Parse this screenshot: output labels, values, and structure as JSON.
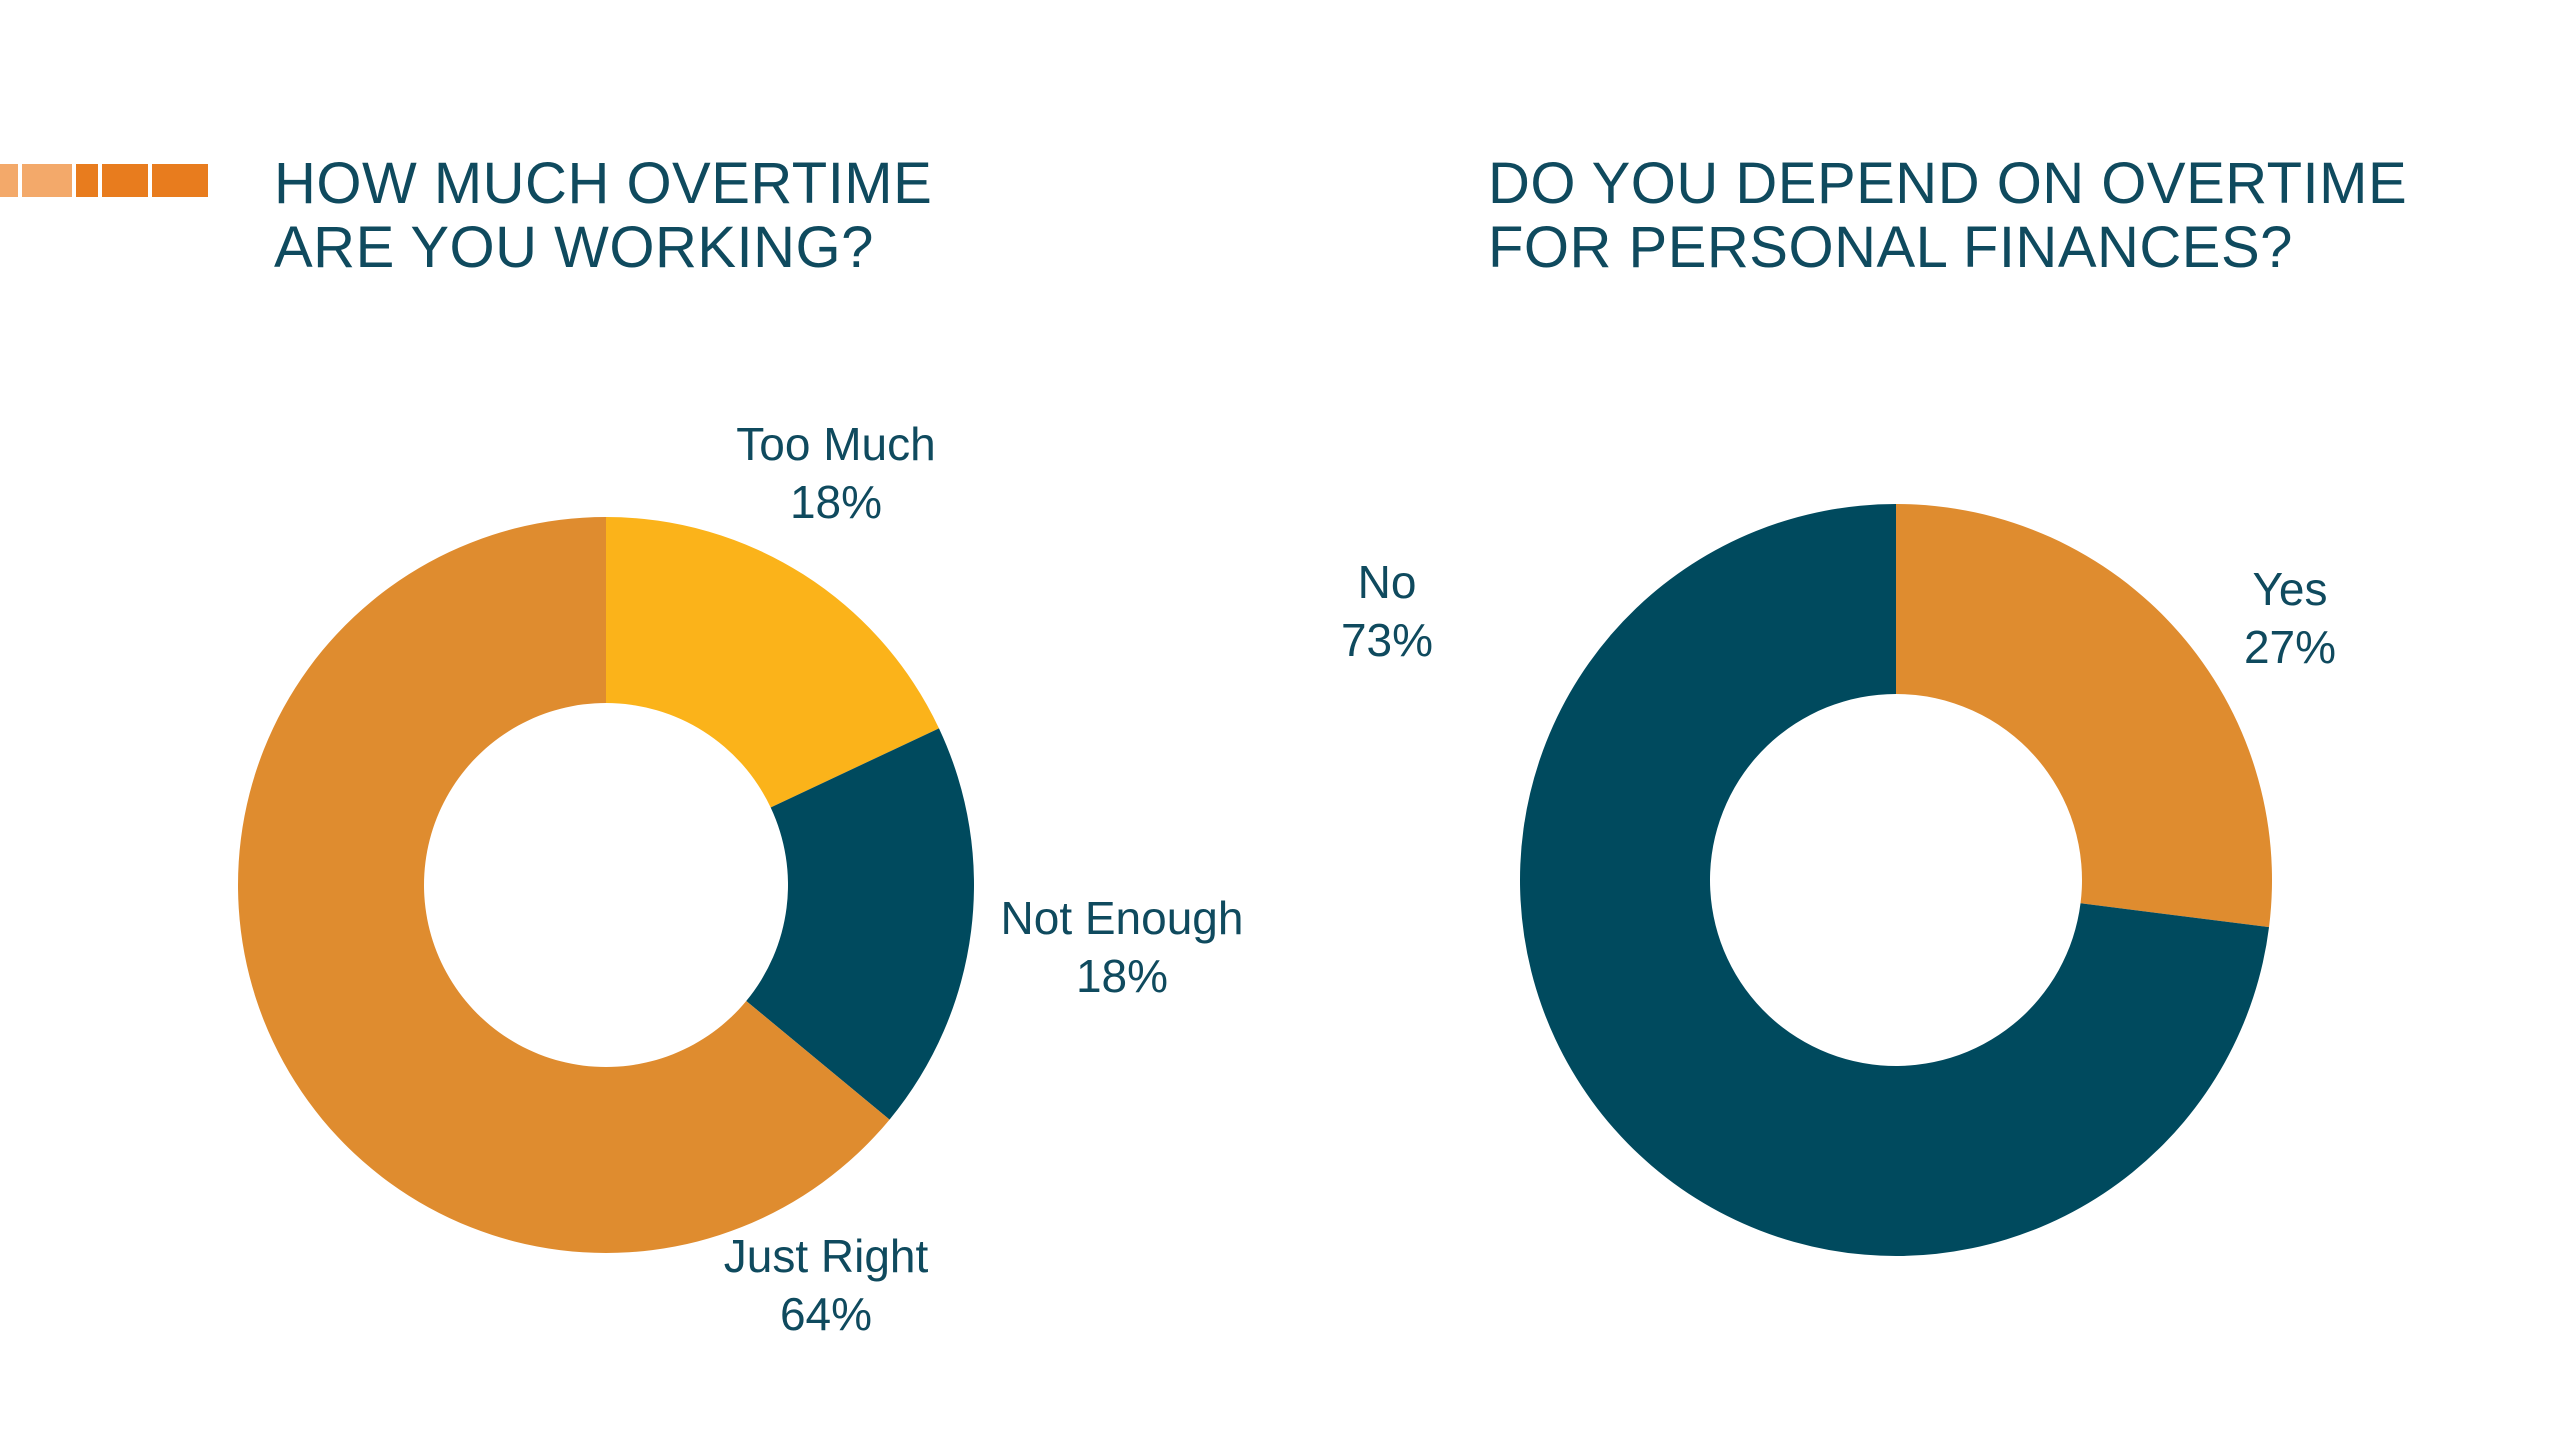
{
  "colors": {
    "title_text": "#0f4a5e",
    "orange": "#df8c2f",
    "yellow": "#fbb31a",
    "teal": "#004a5e",
    "deco_light": "#f3a96a",
    "deco_dark": "#e87c1e"
  },
  "chart_data": [
    {
      "type": "pie",
      "donut": true,
      "title_lines": [
        "HOW MUCH OVERTIME",
        "ARE YOU WORKING?"
      ],
      "slices": [
        {
          "label": "Too Much",
          "value": 18,
          "value_label": "18%",
          "color": "#fbb31a"
        },
        {
          "label": "Not Enough",
          "value": 18,
          "value_label": "18%",
          "color": "#004a5e"
        },
        {
          "label": "Just Right",
          "value": 64,
          "value_label": "64%",
          "color": "#df8c2f"
        }
      ]
    },
    {
      "type": "pie",
      "donut": true,
      "title_lines": [
        "DO YOU DEPEND ON OVERTIME",
        "FOR PERSONAL FINANCES?"
      ],
      "slices": [
        {
          "label": "Yes",
          "value": 27,
          "value_label": "27%",
          "color": "#df8c2f"
        },
        {
          "label": "No",
          "value": 73,
          "value_label": "73%",
          "color": "#004a5e"
        }
      ]
    }
  ]
}
